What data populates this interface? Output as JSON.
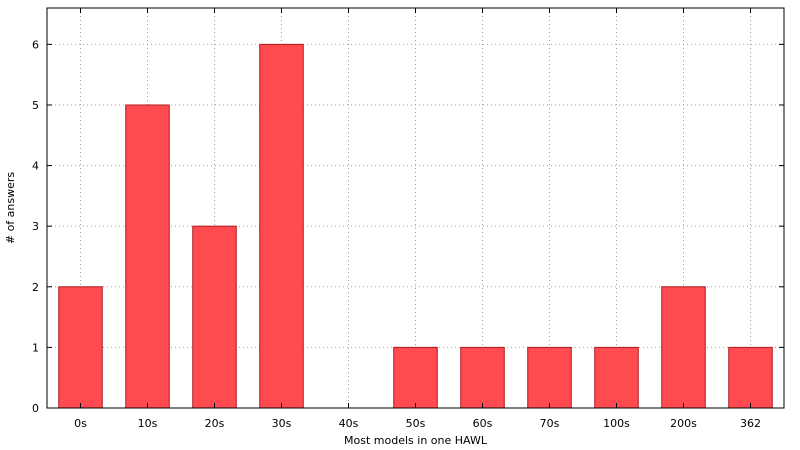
{
  "chart_data": {
    "type": "bar",
    "title": "",
    "xlabel": "Most models in one HAWL",
    "ylabel": "# of answers",
    "categories": [
      "0s",
      "10s",
      "20s",
      "30s",
      "40s",
      "50s",
      "60s",
      "70s",
      "100s",
      "200s",
      "362"
    ],
    "values": [
      2,
      5,
      3,
      6,
      0,
      1,
      1,
      1,
      1,
      2,
      1
    ],
    "ylim": [
      0,
      6.6
    ],
    "yticks": [
      "0",
      "1",
      "2",
      "3",
      "4",
      "5",
      "6"
    ],
    "grid": true,
    "legend": "none",
    "colors": {
      "bar_fill": "#ff4b4f",
      "bar_stroke": "#b01b1f",
      "grid": "#a0a0a0",
      "axis": "#000000"
    }
  }
}
